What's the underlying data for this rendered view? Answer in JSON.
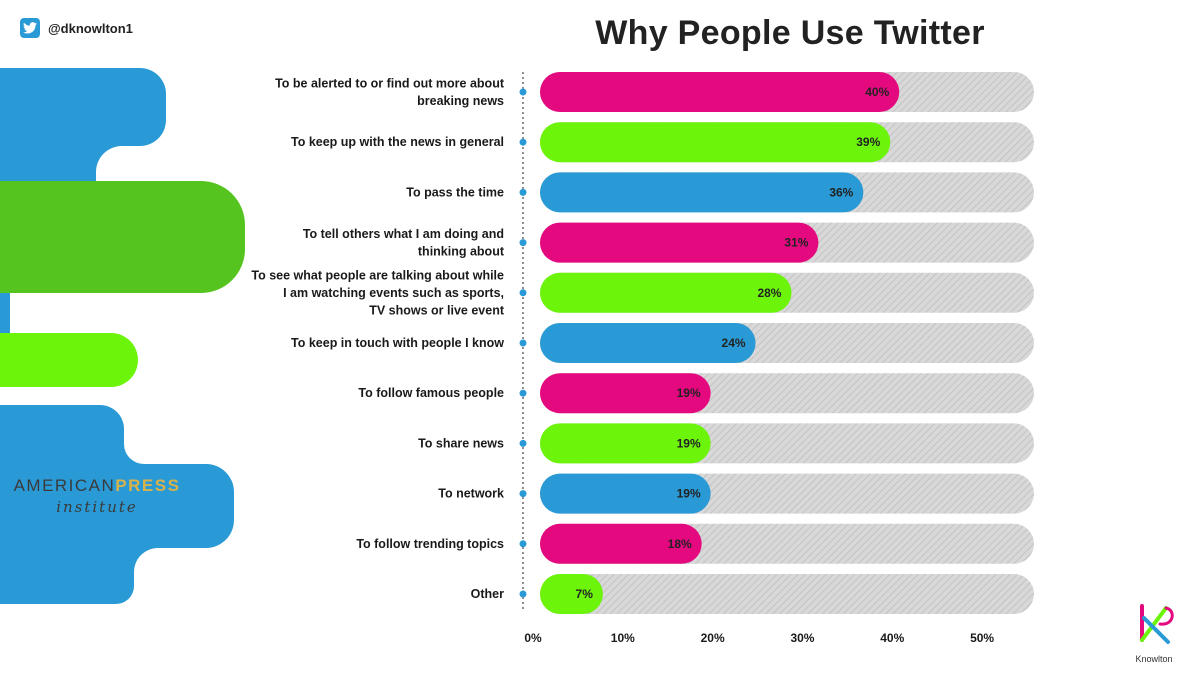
{
  "header": {
    "handle": "@dknowlton1",
    "title": "Why People Use Twitter"
  },
  "brand": {
    "american": "AMERICAN",
    "press": "PRESS",
    "institute": "institute"
  },
  "logo": {
    "name": "Knowlton"
  },
  "colors": {
    "pink": "#e5097f",
    "green": "#6cf40a",
    "blue": "#2a9ad6",
    "track": "#d2d2d2"
  },
  "icons": [
    "twitter-bird-icon",
    "knowlton-logo-icon"
  ],
  "chart_data": {
    "type": "bar",
    "orientation": "horizontal",
    "title": "Why People Use Twitter",
    "categories": [
      "To be alerted to or find out more about breaking news",
      "To keep up with the news in general",
      "To pass the time",
      "To tell others what I am doing and thinking about",
      "To see what people are talking about while I am watching events such as sports, TV shows or live event",
      "To keep in touch with people I know",
      "To follow famous people",
      "To share news",
      "To network",
      "To follow trending topics",
      "Other"
    ],
    "category_lines": [
      [
        "To be alerted to or find out more about",
        "breaking news"
      ],
      [
        "To keep up with the news in general"
      ],
      [
        "To pass the time"
      ],
      [
        "To tell others what I am doing and",
        "thinking about"
      ],
      [
        "To see what people are talking about while",
        "I am watching events such as sports,",
        "TV shows or live event"
      ],
      [
        "To keep in touch with people I know"
      ],
      [
        "To follow famous people"
      ],
      [
        "To share news"
      ],
      [
        "To network"
      ],
      [
        "To follow trending topics"
      ],
      [
        "Other"
      ]
    ],
    "values": [
      40,
      39,
      36,
      31,
      28,
      24,
      19,
      19,
      19,
      18,
      7
    ],
    "value_labels": [
      "40%",
      "39%",
      "36%",
      "31%",
      "28%",
      "24%",
      "19%",
      "19%",
      "19%",
      "18%",
      "7%"
    ],
    "bar_colors": [
      "#e5097f",
      "#6cf40a",
      "#2a9ad6",
      "#e5097f",
      "#6cf40a",
      "#2a9ad6",
      "#e5097f",
      "#6cf40a",
      "#2a9ad6",
      "#e5097f",
      "#6cf40a"
    ],
    "xlim": [
      0,
      55
    ],
    "xticks": [
      0,
      10,
      20,
      30,
      40,
      50
    ],
    "xtick_labels": [
      "0%",
      "10%",
      "20%",
      "30%",
      "40%",
      "50%"
    ],
    "grid": false,
    "legend": "none"
  }
}
